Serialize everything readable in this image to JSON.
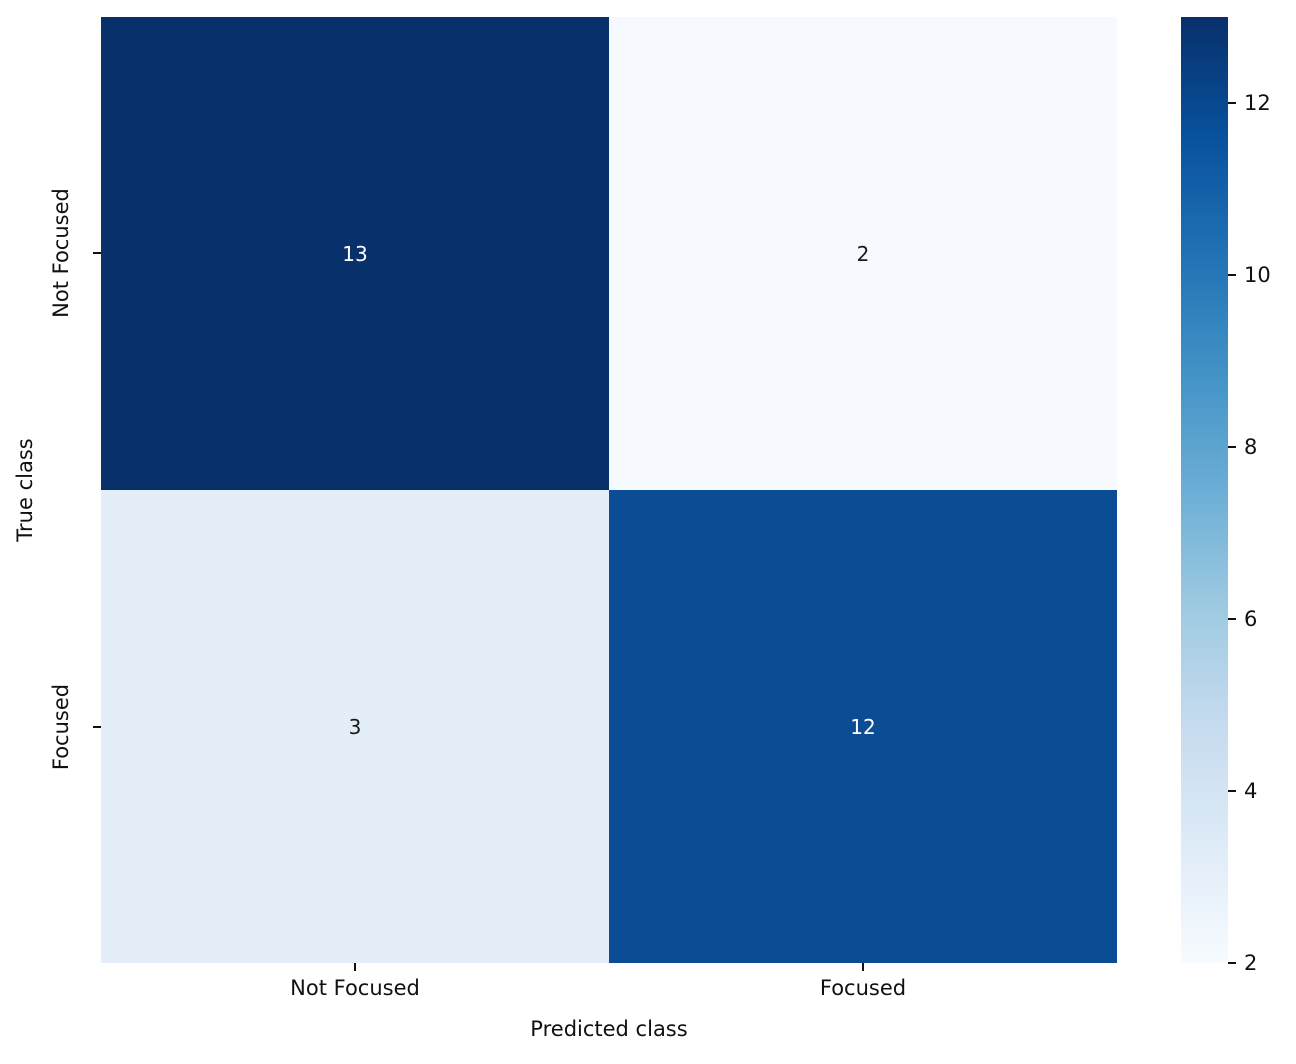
{
  "chart_data": {
    "type": "heatmap",
    "title": "",
    "xlabel": "Predicted class",
    "ylabel": "True class",
    "x_categories": [
      "Not Focused",
      "Focused"
    ],
    "y_categories": [
      "Not Focused",
      "Focused"
    ],
    "matrix": [
      [
        13,
        2
      ],
      [
        3,
        12
      ]
    ],
    "colormap": "Blues",
    "vmin": 2,
    "vmax": 13,
    "legend_position": "right-colorbar",
    "grid": false,
    "colorbar_tick_labels": [
      "12",
      "10",
      "8",
      "6",
      "4",
      "2"
    ],
    "colorbar_gradient_style": "background:linear-gradient(to top, #f7fbff 0%, #deebf7 12.5%, #c6dbef 25%, #9ecae1 37.5%, #6baed6 50%, #4292c6 62.5%, #2171b5 75%, #08519c 87.5%, #08306b 100%)",
    "cells": [
      {
        "true_class": "Not Focused",
        "predicted_class": "Not Focused",
        "value": "13",
        "fill": "#08306b",
        "text_color": "#ffffff",
        "style": "background:#08306b;color:#ffffff"
      },
      {
        "true_class": "Not Focused",
        "predicted_class": "Focused",
        "value": "2",
        "fill": "#f6fafe",
        "text_color": "#1a1a1a",
        "style": "background:#f6fafe;color:#1a1a1a"
      },
      {
        "true_class": "Focused",
        "predicted_class": "Not Focused",
        "value": "3",
        "fill": "#e4eef8",
        "text_color": "#1a1a1a",
        "style": "background:#e4eef8;color:#1a1a1a"
      },
      {
        "true_class": "Focused",
        "predicted_class": "Focused",
        "value": "12",
        "fill": "#0b4d94",
        "text_color": "#ffffff",
        "style": "background:#0b4d94;color:#ffffff"
      }
    ]
  }
}
